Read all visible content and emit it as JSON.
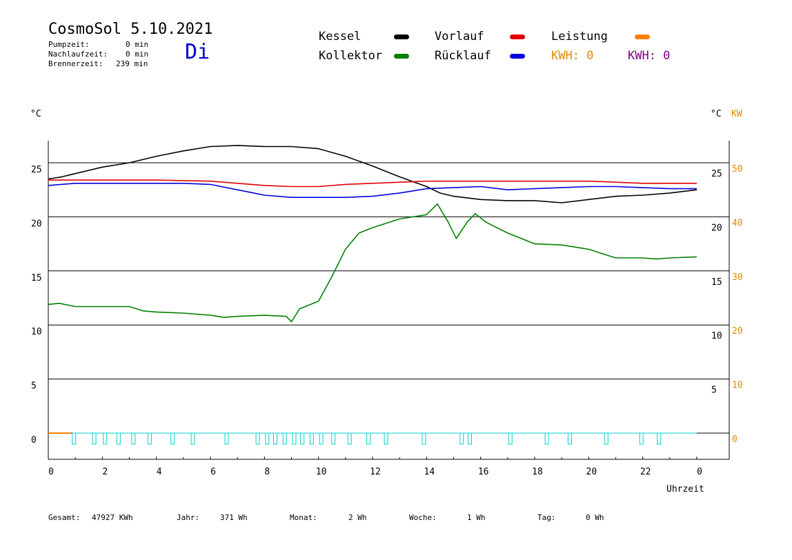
{
  "header": {
    "title": "CosmoSol 5.10.2021",
    "day": "Di",
    "stats": [
      {
        "label": "Pumpzeit:",
        "value": "0 min"
      },
      {
        "label": "Nachlaufzeit:",
        "value": "0 min"
      },
      {
        "label": "Brennerzeit:",
        "value": "239 min"
      }
    ]
  },
  "legend": {
    "items": [
      {
        "label": "Kessel",
        "color": "#000000"
      },
      {
        "label": "Vorlauf",
        "color": "#e00000"
      },
      {
        "label": "Leistung",
        "color": "#ff8000"
      },
      {
        "label": "Kollektor",
        "color": "#008000"
      },
      {
        "label": "Rücklauf",
        "color": "#0000e0"
      }
    ],
    "kwh_orange": "KWH: 0",
    "kwh_purple": "KWH: 0",
    "kwh_orange_color": "#e08a00",
    "kwh_purple_color": "#800080"
  },
  "axes": {
    "left_unit": "°C",
    "right_unit_temp": "°C",
    "right_unit_power": "KW",
    "x_label": "Uhrzeit",
    "left_ticks": [
      "25",
      "20",
      "15",
      "10",
      "5",
      "0"
    ],
    "right_temp_ticks": [
      "25",
      "20",
      "15",
      "10",
      "5"
    ],
    "right_power_ticks": [
      "50",
      "40",
      "30",
      "20",
      "10",
      "0"
    ],
    "x_ticks": [
      "0",
      "2",
      "4",
      "6",
      "8",
      "10",
      "12",
      "14",
      "16",
      "18",
      "20",
      "22",
      "0"
    ],
    "power_color": "#e08a00"
  },
  "footer": {
    "items": [
      {
        "label": "Gesamt:",
        "value": "47927 KWh"
      },
      {
        "label": "Jahr:",
        "value": "371 Wh"
      },
      {
        "label": "Monat:",
        "value": "2 Wh"
      },
      {
        "label": "Woche:",
        "value": "1 Wh"
      },
      {
        "label": "Tag:",
        "value": "0 Wh"
      }
    ]
  },
  "chart_data": {
    "type": "line",
    "x_unit": "hours",
    "xlim": [
      0,
      24
    ],
    "ylim": [
      -2.5,
      27
    ],
    "ylabel": "°C",
    "xlabel": "Uhrzeit",
    "grid": "horizontal",
    "series": [
      {
        "name": "Kessel",
        "color": "#000000",
        "points": [
          [
            0,
            23.5
          ],
          [
            0.5,
            23.7
          ],
          [
            1,
            24
          ],
          [
            2,
            24.6
          ],
          [
            3,
            25
          ],
          [
            4,
            25.6
          ],
          [
            5,
            26.1
          ],
          [
            6,
            26.5
          ],
          [
            7,
            26.6
          ],
          [
            8,
            26.5
          ],
          [
            9,
            26.5
          ],
          [
            10,
            26.3
          ],
          [
            11,
            25.6
          ],
          [
            12,
            24.7
          ],
          [
            13,
            23.7
          ],
          [
            14,
            22.8
          ],
          [
            14.5,
            22.2
          ],
          [
            15,
            21.9
          ],
          [
            16,
            21.6
          ],
          [
            17,
            21.5
          ],
          [
            18,
            21.5
          ],
          [
            19,
            21.3
          ],
          [
            20,
            21.6
          ],
          [
            21,
            21.9
          ],
          [
            22,
            22
          ],
          [
            23,
            22.2
          ],
          [
            24,
            22.5
          ]
        ]
      },
      {
        "name": "Vorlauf",
        "color": "#e00000",
        "points": [
          [
            0,
            23.4
          ],
          [
            2,
            23.4
          ],
          [
            4,
            23.4
          ],
          [
            6,
            23.3
          ],
          [
            7,
            23.1
          ],
          [
            8,
            22.9
          ],
          [
            9,
            22.8
          ],
          [
            10,
            22.8
          ],
          [
            11,
            23
          ],
          [
            12,
            23.1
          ],
          [
            13,
            23.2
          ],
          [
            14,
            23.3
          ],
          [
            15,
            23.3
          ],
          [
            16,
            23.3
          ],
          [
            17,
            23.3
          ],
          [
            18,
            23.3
          ],
          [
            19,
            23.3
          ],
          [
            20,
            23.3
          ],
          [
            21,
            23.2
          ],
          [
            22,
            23.1
          ],
          [
            23,
            23.1
          ],
          [
            24,
            23.1
          ]
        ]
      },
      {
        "name": "Rücklauf",
        "color": "#0000e0",
        "points": [
          [
            0,
            22.9
          ],
          [
            1,
            23.1
          ],
          [
            2,
            23.1
          ],
          [
            3,
            23.1
          ],
          [
            4,
            23.1
          ],
          [
            5,
            23.1
          ],
          [
            6,
            23
          ],
          [
            7,
            22.5
          ],
          [
            8,
            22
          ],
          [
            9,
            21.8
          ],
          [
            10,
            21.8
          ],
          [
            11,
            21.8
          ],
          [
            12,
            21.9
          ],
          [
            13,
            22.2
          ],
          [
            14,
            22.6
          ],
          [
            15,
            22.7
          ],
          [
            16,
            22.8
          ],
          [
            17,
            22.5
          ],
          [
            18,
            22.6
          ],
          [
            19,
            22.7
          ],
          [
            20,
            22.8
          ],
          [
            21,
            22.8
          ],
          [
            22,
            22.7
          ],
          [
            23,
            22.6
          ],
          [
            24,
            22.6
          ]
        ]
      },
      {
        "name": "Kollektor",
        "color": "#008000",
        "points": [
          [
            0,
            11.9
          ],
          [
            0.4,
            12
          ],
          [
            1,
            11.7
          ],
          [
            2,
            11.7
          ],
          [
            3,
            11.7
          ],
          [
            3.5,
            11.3
          ],
          [
            4,
            11.2
          ],
          [
            5,
            11.1
          ],
          [
            6,
            10.9
          ],
          [
            6.5,
            10.7
          ],
          [
            7,
            10.8
          ],
          [
            8,
            10.9
          ],
          [
            8.8,
            10.8
          ],
          [
            9,
            10.3
          ],
          [
            9.3,
            11.5
          ],
          [
            10,
            12.2
          ],
          [
            10.5,
            14.5
          ],
          [
            11,
            17
          ],
          [
            11.5,
            18.5
          ],
          [
            12,
            19
          ],
          [
            13,
            19.8
          ],
          [
            14,
            20.2
          ],
          [
            14.4,
            21.2
          ],
          [
            14.8,
            19.5
          ],
          [
            15.1,
            18
          ],
          [
            15.5,
            19.5
          ],
          [
            15.8,
            20.3
          ],
          [
            16.2,
            19.5
          ],
          [
            17,
            18.5
          ],
          [
            18,
            17.5
          ],
          [
            19,
            17.4
          ],
          [
            20,
            17
          ],
          [
            20.5,
            16.6
          ],
          [
            21,
            16.2
          ],
          [
            22,
            16.2
          ],
          [
            22.5,
            16.1
          ],
          [
            23,
            16.2
          ],
          [
            24,
            16.3
          ]
        ]
      },
      {
        "name": "Leistung",
        "color": "#ff8000",
        "points": [
          [
            0,
            0
          ],
          [
            0.9,
            0
          ]
        ]
      }
    ]
  }
}
